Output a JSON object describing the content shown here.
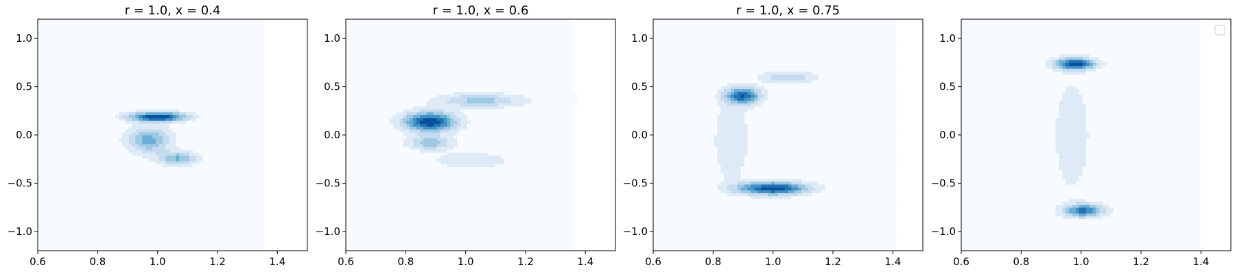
{
  "figure": {
    "background": "#ffffff"
  },
  "chart_data": [
    {
      "type": "contour",
      "title": "r = 1.0, x = 0.4",
      "xlabel": "",
      "ylabel": "",
      "xlim": [
        0.6,
        1.5
      ],
      "ylim": [
        -1.2,
        1.2
      ],
      "x_ticks": [
        0.6,
        0.8,
        1.0,
        1.2,
        1.4
      ],
      "y_ticks": [
        -1.0,
        -0.5,
        0.0,
        0.5,
        1.0
      ],
      "grid": false,
      "colormap": [
        "#f7fbff",
        "#deebf7",
        "#c6dbef",
        "#9ecae1",
        "#6baed6",
        "#4292c6",
        "#2171b5",
        "#08519c"
      ],
      "density_modes": [
        {
          "x": 1.0,
          "y": 0.19,
          "sx": 0.065,
          "sy": 0.035,
          "weight": 1.0
        },
        {
          "x": 0.97,
          "y": -0.05,
          "sx": 0.05,
          "sy": 0.09,
          "weight": 0.55
        },
        {
          "x": 1.07,
          "y": -0.24,
          "sx": 0.045,
          "sy": 0.05,
          "weight": 0.5
        }
      ],
      "background_level": 0.04,
      "legend": null
    },
    {
      "type": "contour",
      "title": "r = 1.0, x = 0.6",
      "xlabel": "",
      "ylabel": "",
      "xlim": [
        0.6,
        1.5
      ],
      "ylim": [
        -1.2,
        1.2
      ],
      "x_ticks": [
        0.6,
        0.8,
        1.0,
        1.2,
        1.4
      ],
      "y_ticks": [
        -1.0,
        -0.5,
        0.0,
        0.5,
        1.0
      ],
      "grid": false,
      "colormap": [
        "#f7fbff",
        "#deebf7",
        "#c6dbef",
        "#9ecae1",
        "#6baed6",
        "#4292c6",
        "#2171b5",
        "#08519c"
      ],
      "density_modes": [
        {
          "x": 0.88,
          "y": 0.14,
          "sx": 0.06,
          "sy": 0.07,
          "weight": 1.0
        },
        {
          "x": 1.05,
          "y": 0.36,
          "sx": 0.1,
          "sy": 0.05,
          "weight": 0.4
        },
        {
          "x": 0.88,
          "y": -0.08,
          "sx": 0.05,
          "sy": 0.05,
          "weight": 0.45
        },
        {
          "x": 1.02,
          "y": -0.26,
          "sx": 0.09,
          "sy": 0.06,
          "weight": 0.2
        }
      ],
      "background_level": 0.04,
      "legend": null
    },
    {
      "type": "contour",
      "title": "r = 1.0, x = 0.75",
      "xlabel": "",
      "ylabel": "",
      "xlim": [
        0.6,
        1.5
      ],
      "ylim": [
        -1.2,
        1.2
      ],
      "x_ticks": [
        0.6,
        0.8,
        1.0,
        1.2,
        1.4
      ],
      "y_ticks": [
        -1.0,
        -0.5,
        0.0,
        0.5,
        1.0
      ],
      "grid": false,
      "colormap": [
        "#f7fbff",
        "#deebf7",
        "#c6dbef",
        "#9ecae1",
        "#6baed6",
        "#4292c6",
        "#2171b5",
        "#08519c"
      ],
      "density_modes": [
        {
          "x": 1.0,
          "y": -0.55,
          "sx": 0.08,
          "sy": 0.045,
          "weight": 1.0
        },
        {
          "x": 0.9,
          "y": 0.41,
          "sx": 0.04,
          "sy": 0.06,
          "weight": 0.85
        },
        {
          "x": 1.05,
          "y": 0.6,
          "sx": 0.06,
          "sy": 0.04,
          "weight": 0.35
        },
        {
          "x": 0.86,
          "y": -0.05,
          "sx": 0.04,
          "sy": 0.3,
          "weight": 0.2
        }
      ],
      "background_level": 0.05,
      "legend": null
    },
    {
      "type": "contour",
      "title": "",
      "xlabel": "",
      "ylabel": "",
      "xlim": [
        0.6,
        1.5
      ],
      "ylim": [
        -1.2,
        1.2
      ],
      "x_ticks": [
        0.6,
        0.8,
        1.0,
        1.2,
        1.4
      ],
      "y_ticks": [
        -1.0,
        -0.5,
        0.0,
        0.5,
        1.0
      ],
      "grid": false,
      "colormap": [
        "#f7fbff",
        "#deebf7",
        "#c6dbef",
        "#9ecae1",
        "#6baed6",
        "#4292c6",
        "#2171b5",
        "#08519c"
      ],
      "density_modes": [
        {
          "x": 0.98,
          "y": 0.74,
          "sx": 0.045,
          "sy": 0.04,
          "weight": 1.0
        },
        {
          "x": 1.01,
          "y": -0.78,
          "sx": 0.045,
          "sy": 0.045,
          "weight": 0.8
        },
        {
          "x": 0.97,
          "y": 0.0,
          "sx": 0.05,
          "sy": 0.5,
          "weight": 0.15
        }
      ],
      "background_level": 0.05,
      "legend": {
        "placement": "upper-right",
        "entries": []
      }
    }
  ]
}
